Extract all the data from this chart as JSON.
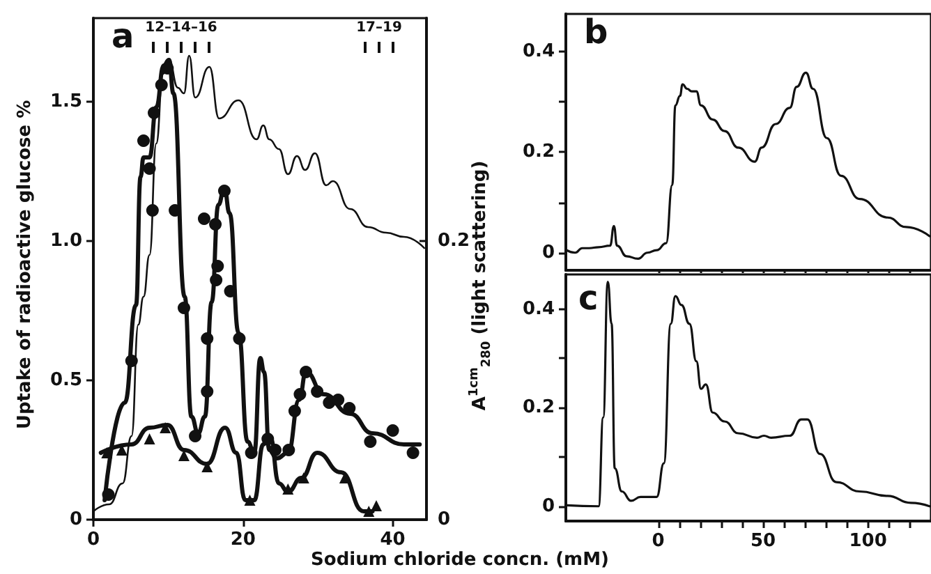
{
  "chart_data": [
    {
      "type": "line",
      "title": "a",
      "xlabel": "Sodium chloride concn. (mM)",
      "ylabel": "Uptake of radioactive glucose %",
      "xlim": [
        0,
        44.5
      ],
      "xticks": [
        0,
        20,
        40
      ],
      "ylim": [
        0,
        1.8
      ],
      "yticks": [
        0,
        0.5,
        {
          "value": 1.0,
          "label": "1.0"
        },
        1.5
      ],
      "y2lim": [
        0,
        0.36
      ],
      "y2ticks": [
        0,
        0.2
      ],
      "annotations": [
        "12–14–16",
        "17–19"
      ],
      "series": [
        {
          "type": "scatter",
          "marker": "circle",
          "color": "#111111",
          "x": [
            2.0,
            5.1,
            6.7,
            7.5,
            7.9,
            8.1,
            9.1,
            9.9,
            10.9,
            12.1,
            13.6,
            14.8,
            15.2,
            15.2,
            16.3,
            16.6,
            16.4,
            17.5,
            18.3,
            19.5,
            21.1,
            23.3,
            24.3,
            26.1,
            26.9,
            27.6,
            28.4,
            29.9,
            31.5,
            32.7,
            34.2,
            37.0,
            40.0,
            42.7
          ],
          "values": [
            0.09,
            0.57,
            1.36,
            1.26,
            1.11,
            1.46,
            1.56,
            1.62,
            1.11,
            0.76,
            0.3,
            1.08,
            0.65,
            0.46,
            1.06,
            0.91,
            0.86,
            1.18,
            0.82,
            0.65,
            0.24,
            0.29,
            0.25,
            0.25,
            0.39,
            0.45,
            0.53,
            0.46,
            0.42,
            0.43,
            0.4,
            0.28,
            0.32,
            0.24
          ]
        },
        {
          "marker": "none",
          "color": "#111111",
          "x": [
            1.5,
            4.2,
            5.7,
            6.3,
            6.7,
            7.5,
            8.4,
            9.4,
            10.1,
            10.7,
            12.2,
            13.1,
            14.0,
            14.9,
            15.8,
            16.7,
            17.5,
            18.2,
            19.4,
            20.6,
            21.5,
            22.3,
            22.8,
            23.5,
            24.5,
            26.0,
            27.5,
            28.4,
            30.8,
            34.3,
            37.3,
            41.5,
            43.6
          ],
          "values": [
            0.07,
            0.42,
            0.77,
            1.23,
            1.3,
            1.3,
            1.48,
            1.63,
            1.65,
            1.53,
            0.8,
            0.37,
            0.31,
            0.37,
            0.78,
            1.13,
            1.19,
            1.1,
            0.67,
            0.28,
            0.24,
            0.58,
            0.53,
            0.25,
            0.22,
            0.24,
            0.43,
            0.53,
            0.45,
            0.38,
            0.31,
            0.27,
            0.27
          ]
        },
        {
          "type": "scatter",
          "marker": "triangle",
          "color": "#111111",
          "x": [
            1.8,
            3.8,
            7.5,
            9.6,
            12.1,
            15.2,
            20.9,
            26.0,
            28.1,
            33.6,
            36.8,
            37.8
          ],
          "values": [
            0.24,
            0.25,
            0.29,
            0.33,
            0.23,
            0.19,
            0.07,
            0.11,
            0.15,
            0.15,
            0.03,
            0.05
          ]
        },
        {
          "marker": "none",
          "color": "#111111",
          "x": [
            1.0,
            5.1,
            7.5,
            9.9,
            12.1,
            15.2,
            17.6,
            19.1,
            20.3,
            21.5,
            22.7,
            23.6,
            24.8,
            26.0,
            27.8,
            29.9,
            33.1,
            36.1,
            37.3
          ],
          "values": [
            0.24,
            0.27,
            0.33,
            0.34,
            0.25,
            0.2,
            0.33,
            0.24,
            0.07,
            0.07,
            0.27,
            0.3,
            0.13,
            0.1,
            0.15,
            0.24,
            0.17,
            0.03,
            0.03
          ]
        },
        {
          "marker": "none",
          "axis": "y2",
          "color": "#111111",
          "x": [
            0,
            2.1,
            3.9,
            5.1,
            6.0,
            6.7,
            7.5,
            8.4,
            9.3,
            10.1,
            11.3,
            12.1,
            12.8,
            13.6,
            15.5,
            16.8,
            19.4,
            21.8,
            22.7,
            23.5,
            24.8,
            26.0,
            27.2,
            28.3,
            29.6,
            31.1,
            32.0,
            34.3,
            36.7,
            39.1,
            41.5,
            44.2
          ],
          "values": [
            0.006,
            0.011,
            0.026,
            0.06,
            0.14,
            0.16,
            0.19,
            0.27,
            0.32,
            0.33,
            0.31,
            0.306,
            0.333,
            0.303,
            0.325,
            0.288,
            0.301,
            0.273,
            0.283,
            0.273,
            0.266,
            0.248,
            0.261,
            0.251,
            0.263,
            0.24,
            0.243,
            0.223,
            0.21,
            0.206,
            0.203,
            0.195
          ]
        }
      ]
    },
    {
      "type": "line",
      "title": "b",
      "ylabel": "A$^{1cm}$$_{280}$ (light scattering)",
      "tick_labels": "y",
      "xlim": [
        -44,
        130
      ],
      "xticks": [
        0,
        10,
        20,
        30,
        40,
        50,
        60,
        70,
        80,
        90,
        100,
        110,
        120
      ],
      "ylim": [
        -0.035,
        0.475
      ],
      "yticks": [
        0,
        {
          "value": 0.1,
          "label": null
        },
        0.2,
        {
          "value": 0.3,
          "label": null
        },
        0.4
      ],
      "series": [
        {
          "marker": "none",
          "color": "#111111",
          "x": [
            -43.6,
            -39.6,
            -36.2,
            -32.9,
            -28.4,
            -22.9,
            -21.1,
            -19.6,
            -15.1,
            -9.6,
            -5.1,
            -0.7,
            3.8,
            6.7,
            8.2,
            10.4,
            11.6,
            13.8,
            16,
            18.2,
            20.4,
            26,
            31.6,
            38.2,
            46,
            49.3,
            56,
            62.7,
            66,
            70.4,
            73.8,
            80.4,
            87.1,
            96,
            109.3,
            118.2,
            129.3
          ],
          "values": [
            0.005,
            0,
            0.009,
            0.009,
            0.011,
            0.014,
            0.053,
            0.014,
            -0.007,
            -0.012,
            0,
            0.005,
            0.019,
            0.135,
            0.293,
            0.312,
            0.335,
            0.326,
            0.321,
            0.321,
            0.293,
            0.265,
            0.242,
            0.209,
            0.181,
            0.209,
            0.256,
            0.288,
            0.33,
            0.358,
            0.326,
            0.228,
            0.153,
            0.107,
            0.07,
            0.051,
            0.033
          ]
        }
      ]
    },
    {
      "type": "line",
      "title": "c",
      "xlim": [
        -44,
        130
      ],
      "xticks": [
        0,
        {
          "value": 10,
          "label": null
        },
        {
          "value": 20,
          "label": null
        },
        {
          "value": 30,
          "label": null
        },
        {
          "value": 40,
          "label": null
        },
        50,
        {
          "value": 60,
          "label": null
        },
        {
          "value": 70,
          "label": null
        },
        {
          "value": 80,
          "label": null
        },
        {
          "value": 90,
          "label": null
        },
        100,
        {
          "value": 110,
          "label": null
        },
        {
          "value": 120,
          "label": null
        }
      ],
      "ylim": [
        -0.03,
        0.47
      ],
      "yticks": [
        0,
        {
          "value": 0.1,
          "label": null
        },
        0.2,
        {
          "value": 0.3,
          "label": null
        },
        0.4
      ],
      "series": [
        {
          "marker": "none",
          "color": "#111111",
          "x": [
            -43.6,
            -28.4,
            -26.2,
            -24,
            -22.2,
            -20.7,
            -17.3,
            -12.9,
            -8.4,
            -0.7,
            2.7,
            6,
            8.2,
            11.1,
            14.9,
            18.2,
            20.4,
            22.7,
            26,
            31.6,
            38.2,
            47.1,
            50.4,
            53.8,
            62.7,
            68.2,
            71.1,
            77.1,
            84.9,
            96,
            109.3,
            120.4,
            129.3
          ],
          "values": [
            0.002,
            0,
            0.18,
            0.455,
            0.37,
            0.077,
            0.03,
            0.011,
            0.019,
            0.019,
            0.087,
            0.37,
            0.426,
            0.408,
            0.37,
            0.294,
            0.238,
            0.247,
            0.19,
            0.172,
            0.148,
            0.139,
            0.143,
            0.139,
            0.143,
            0.176,
            0.176,
            0.106,
            0.049,
            0.03,
            0.021,
            0.007,
            0
          ]
        }
      ]
    }
  ]
}
